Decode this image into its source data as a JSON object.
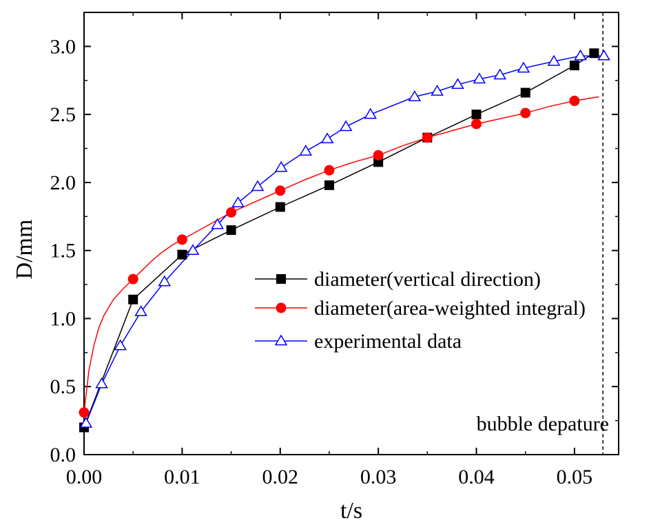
{
  "chart_data": {
    "type": "line",
    "title": "",
    "xlabel": "t/s",
    "ylabel": "D/mm",
    "xlim": [
      0.0,
      0.0545
    ],
    "ylim": [
      0.0,
      3.25
    ],
    "x_ticks": [
      0.0,
      0.01,
      0.02,
      0.03,
      0.04,
      0.05
    ],
    "x_tick_labels": [
      "0.00",
      "0.01",
      "0.02",
      "0.03",
      "0.04",
      "0.05"
    ],
    "y_ticks": [
      0.0,
      0.5,
      1.0,
      1.5,
      2.0,
      2.5,
      3.0
    ],
    "y_tick_labels": [
      "0.0",
      "0.5",
      "1.0",
      "1.5",
      "2.0",
      "2.5",
      "3.0"
    ],
    "legend_position": "center-right",
    "annotation": {
      "text": "bubble depature",
      "x": 0.0529
    },
    "series": [
      {
        "name": "diameter(vertical direction)",
        "color": "#000000",
        "marker": "square",
        "x": [
          0.0,
          0.005,
          0.01,
          0.015,
          0.02,
          0.025,
          0.03,
          0.035,
          0.04,
          0.045,
          0.05,
          0.052
        ],
        "y": [
          0.2,
          1.14,
          1.47,
          1.65,
          1.82,
          1.98,
          2.15,
          2.33,
          2.5,
          2.66,
          2.86,
          2.95
        ]
      },
      {
        "name": "diameter(area-weighted integral)",
        "color": "#ff0000",
        "marker": "circle",
        "x": [
          0.0,
          0.005,
          0.01,
          0.015,
          0.02,
          0.025,
          0.03,
          0.035,
          0.04,
          0.045,
          0.05
        ],
        "y": [
          0.31,
          1.29,
          1.58,
          1.78,
          1.94,
          2.09,
          2.2,
          2.33,
          2.43,
          2.51,
          2.6
        ],
        "curve": {
          "x": [
            0.0,
            0.0005,
            0.001,
            0.0015,
            0.002,
            0.003,
            0.004,
            0.005,
            0.006,
            0.007,
            0.008,
            0.009,
            0.01,
            0.0125,
            0.015,
            0.0175,
            0.02,
            0.0225,
            0.025,
            0.0275,
            0.03,
            0.0325,
            0.035,
            0.0375,
            0.04,
            0.0425,
            0.045,
            0.0475,
            0.05,
            0.0525
          ],
          "y": [
            0.31,
            0.62,
            0.8,
            0.93,
            1.02,
            1.14,
            1.22,
            1.29,
            1.36,
            1.43,
            1.49,
            1.54,
            1.58,
            1.68,
            1.78,
            1.86,
            1.94,
            2.02,
            2.09,
            2.15,
            2.2,
            2.27,
            2.33,
            2.38,
            2.43,
            2.47,
            2.51,
            2.56,
            2.6,
            2.63
          ]
        }
      },
      {
        "name": "experimental data",
        "color": "#0000ff",
        "marker": "triangle-open",
        "x": [
          0.0002,
          0.0018,
          0.0037,
          0.0058,
          0.0082,
          0.0111,
          0.0136,
          0.0157,
          0.0177,
          0.0201,
          0.0226,
          0.0248,
          0.0267,
          0.0292,
          0.0337,
          0.036,
          0.0381,
          0.0403,
          0.0424,
          0.0448,
          0.0479,
          0.0506,
          0.053
        ],
        "y": [
          0.23,
          0.52,
          0.8,
          1.05,
          1.27,
          1.5,
          1.69,
          1.85,
          1.97,
          2.11,
          2.23,
          2.32,
          2.41,
          2.5,
          2.63,
          2.67,
          2.72,
          2.76,
          2.79,
          2.84,
          2.89,
          2.93,
          2.93
        ]
      }
    ]
  }
}
